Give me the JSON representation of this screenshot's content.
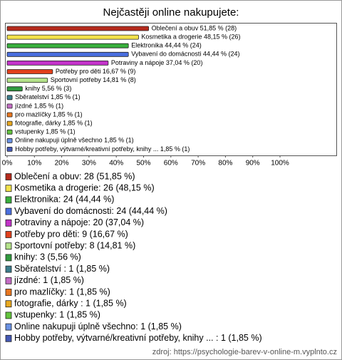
{
  "chart_data": {
    "type": "hbar",
    "title": "Nejčastěji online nakupujete:",
    "categories": [
      "Oblečení a obuv",
      "Kosmetika a drogerie",
      "Elektronika",
      "Vybavení do domácnosti",
      "Potraviny a nápoje",
      "Potřeby pro děti",
      "Sportovní potřeby",
      "knihy",
      "Sběratelství",
      "jízdné",
      "pro mazlíčky",
      "fotografie, dárky",
      "vstupenky",
      "Online nakupuji úplně všechno",
      "Hobby potřeby, výtvarné/kreativní potřeby, knihy ..."
    ],
    "values": [
      51.85,
      48.15,
      44.44,
      44.44,
      37.04,
      16.67,
      14.81,
      5.56,
      1.85,
      1.85,
      1.85,
      1.85,
      1.85,
      1.85,
      1.85
    ],
    "value_labels": [
      "Oblečení a obuv 51,85 % (28)",
      "Kosmetika a drogerie 48,15 % (26)",
      "Elektronika 44,44 % (24)",
      "Vybavení do domácnosti 44,44 % (24)",
      "Potraviny a nápoje 37,04 % (20)",
      "Potřeby pro děti 16,67 % (9)",
      "Sportovní potřeby 14,81 % (8)",
      "knihy 5,56 % (3)",
      "Sběratelství  1,85 % (1)",
      "jízdné 1,85 % (1)",
      "pro mazlíčky 1,85 % (1)",
      "fotografie, dárky  1,85 % (1)",
      "vstupenky 1,85 % (1)",
      "Online nakupuji úplně všechno 1,85 % (1)",
      "Hobby potřeby, výtvarné/kreativní potřeby, knihy ...  1,85 % (1)"
    ],
    "legend_labels": [
      "Oblečení a obuv: 28 (51,85 %)",
      "Kosmetika a drogerie: 26 (48,15 %)",
      "Elektronika: 24 (44,44 %)",
      "Vybavení do domácnosti: 24 (44,44 %)",
      "Potraviny a nápoje: 20 (37,04 %)",
      "Potřeby pro děti: 9 (16,67 %)",
      "Sportovní potřeby: 8 (14,81 %)",
      "knihy: 3 (5,56 %)",
      "Sběratelství : 1 (1,85 %)",
      "jízdné: 1 (1,85 %)",
      "pro mazlíčky: 1 (1,85 %)",
      "fotografie, dárky : 1 (1,85 %)",
      "vstupenky: 1 (1,85 %)",
      "Online nakupuji úplně všechno: 1 (1,85 %)",
      "Hobby potřeby, výtvarné/kreativní potřeby, knihy ... : 1 (1,85 %)"
    ],
    "colors": [
      "#b52a1c",
      "#f2e24a",
      "#38b03c",
      "#4a6fe0",
      "#c232c8",
      "#e2401c",
      "#b4e28a",
      "#2f9a3e",
      "#3b7d8c",
      "#c46cc4",
      "#e8761e",
      "#e8a81e",
      "#62c43c",
      "#6a92e4",
      "#4458b4"
    ],
    "xlim": [
      0,
      100
    ],
    "xticks": [
      {
        "value": 0,
        "label": "0%"
      },
      {
        "value": 10,
        "label": "10%"
      },
      {
        "value": 20,
        "label": "20%"
      },
      {
        "value": 30,
        "label": "30%"
      },
      {
        "value": 40,
        "label": "40%"
      },
      {
        "value": 50,
        "label": "50%"
      },
      {
        "value": 60,
        "label": "60%"
      },
      {
        "value": 70,
        "label": "70%"
      },
      {
        "value": 80,
        "label": "80%"
      },
      {
        "value": 90,
        "label": "90%"
      },
      {
        "value": 100,
        "label": "100%"
      }
    ],
    "source": "zdroj: https://psychologie-barev-v-online-m.vyplnto.cz"
  }
}
